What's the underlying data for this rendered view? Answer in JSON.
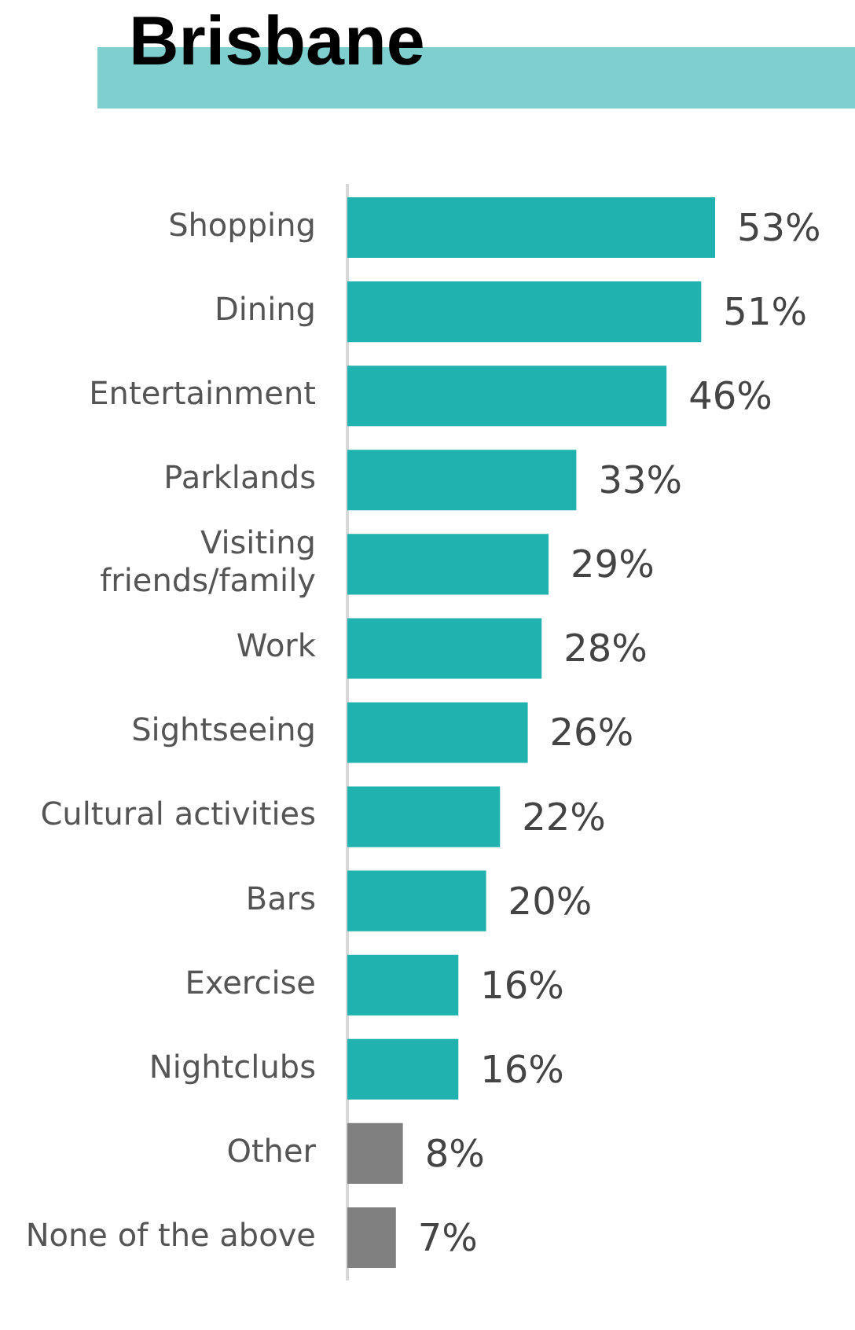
{
  "chart_data": {
    "type": "bar",
    "orientation": "horizontal",
    "title": "Brisbane",
    "categories": [
      "Shopping",
      "Dining",
      "Entertainment",
      "Parklands",
      "Visiting friends/family",
      "Work",
      "Sightseeing",
      "Cultural activities",
      "Bars",
      "Exercise",
      "Nightclubs",
      "Other",
      "None of the above"
    ],
    "values": [
      53,
      51,
      46,
      33,
      29,
      28,
      26,
      22,
      20,
      16,
      16,
      8,
      7
    ],
    "colors": [
      "#20b2ae",
      "#20b2ae",
      "#20b2ae",
      "#20b2ae",
      "#20b2ae",
      "#20b2ae",
      "#20b2ae",
      "#20b2ae",
      "#20b2ae",
      "#20b2ae",
      "#20b2ae",
      "#808080",
      "#808080"
    ],
    "value_labels": [
      "53%",
      "51%",
      "46%",
      "33%",
      "29%",
      "28%",
      "26%",
      "22%",
      "20%",
      "16%",
      "16%",
      "8%",
      "7%"
    ],
    "tick_labels": "y",
    "legend": false
  }
}
